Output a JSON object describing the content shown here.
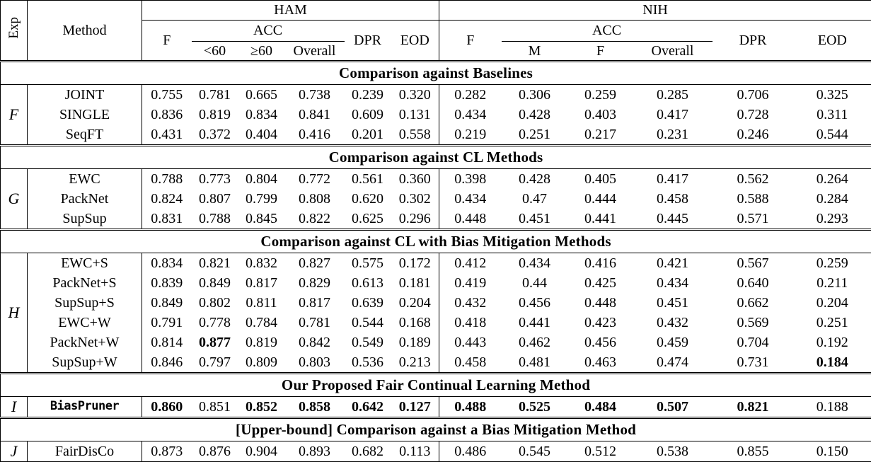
{
  "header": {
    "exp": "Exp",
    "method": "Method",
    "groups": [
      {
        "name": "HAM",
        "f": "F",
        "acc": "ACC",
        "acc_subs": [
          "<60",
          "≥60",
          "Overall"
        ],
        "dpr": "DPR",
        "eod": "EOD"
      },
      {
        "name": "NIH",
        "f": "F",
        "acc": "ACC",
        "acc_subs": [
          "M",
          "F",
          "Overall"
        ],
        "dpr": "DPR",
        "eod": "EOD"
      }
    ]
  },
  "sections": [
    {
      "title": "Comparison against Baselines",
      "exp_symbol": "F",
      "rows": [
        {
          "method": "JOINT",
          "mono": false,
          "values": [
            "0.755",
            "0.781",
            "0.665",
            "0.738",
            "0.239",
            "0.320",
            "0.282",
            "0.306",
            "0.259",
            "0.285",
            "0.706",
            "0.325"
          ],
          "bold": []
        },
        {
          "method": "SINGLE",
          "mono": false,
          "values": [
            "0.836",
            "0.819",
            "0.834",
            "0.841",
            "0.609",
            "0.131",
            "0.434",
            "0.428",
            "0.403",
            "0.417",
            "0.728",
            "0.311"
          ],
          "bold": []
        },
        {
          "method": "SeqFT",
          "mono": false,
          "values": [
            "0.431",
            "0.372",
            "0.404",
            "0.416",
            "0.201",
            "0.558",
            "0.219",
            "0.251",
            "0.217",
            "0.231",
            "0.246",
            "0.544"
          ],
          "bold": []
        }
      ]
    },
    {
      "title": "Comparison against CL Methods",
      "exp_symbol": "G",
      "rows": [
        {
          "method": "EWC",
          "mono": false,
          "values": [
            "0.788",
            "0.773",
            "0.804",
            "0.772",
            "0.561",
            "0.360",
            "0.398",
            "0.428",
            "0.405",
            "0.417",
            "0.562",
            "0.264"
          ],
          "bold": []
        },
        {
          "method": "PackNet",
          "mono": false,
          "values": [
            "0.824",
            "0.807",
            "0.799",
            "0.808",
            "0.620",
            "0.302",
            "0.434",
            "0.47",
            "0.444",
            "0.458",
            "0.588",
            "0.284"
          ],
          "bold": []
        },
        {
          "method": "SupSup",
          "mono": false,
          "values": [
            "0.831",
            "0.788",
            "0.845",
            "0.822",
            "0.625",
            "0.296",
            "0.448",
            "0.451",
            "0.441",
            "0.445",
            "0.571",
            "0.293"
          ],
          "bold": []
        }
      ]
    },
    {
      "title": "Comparison against CL with Bias Mitigation Methods",
      "exp_symbol": "H",
      "rows": [
        {
          "method": "EWC+S",
          "mono": false,
          "values": [
            "0.834",
            "0.821",
            "0.832",
            "0.827",
            "0.575",
            "0.172",
            "0.412",
            "0.434",
            "0.416",
            "0.421",
            "0.567",
            "0.259"
          ],
          "bold": []
        },
        {
          "method": "PackNet+S",
          "mono": false,
          "values": [
            "0.839",
            "0.849",
            "0.817",
            "0.829",
            "0.613",
            "0.181",
            "0.419",
            "0.44",
            "0.425",
            "0.434",
            "0.640",
            "0.211"
          ],
          "bold": []
        },
        {
          "method": "SupSup+S",
          "mono": false,
          "values": [
            "0.849",
            "0.802",
            "0.811",
            "0.817",
            "0.639",
            "0.204",
            "0.432",
            "0.456",
            "0.448",
            "0.451",
            "0.662",
            "0.204"
          ],
          "bold": []
        },
        {
          "method": "EWC+W",
          "mono": false,
          "values": [
            "0.791",
            "0.778",
            "0.784",
            "0.781",
            "0.544",
            "0.168",
            "0.418",
            "0.441",
            "0.423",
            "0.432",
            "0.569",
            "0.251"
          ],
          "bold": []
        },
        {
          "method": "PackNet+W",
          "mono": false,
          "values": [
            "0.814",
            "0.877",
            "0.819",
            "0.842",
            "0.549",
            "0.189",
            "0.443",
            "0.462",
            "0.456",
            "0.459",
            "0.704",
            "0.192"
          ],
          "bold": [
            1
          ]
        },
        {
          "method": "SupSup+W",
          "mono": false,
          "values": [
            "0.846",
            "0.797",
            "0.809",
            "0.803",
            "0.536",
            "0.213",
            "0.458",
            "0.481",
            "0.463",
            "0.474",
            "0.731",
            "0.184"
          ],
          "bold": [
            11
          ]
        }
      ]
    },
    {
      "title": "Our Proposed Fair Continual Learning Method",
      "exp_symbol": "I",
      "rows": [
        {
          "method": "BiasPruner",
          "mono": true,
          "values": [
            "0.860",
            "0.851",
            "0.852",
            "0.858",
            "0.642",
            "0.127",
            "0.488",
            "0.525",
            "0.484",
            "0.507",
            "0.821",
            "0.188"
          ],
          "bold": [
            0,
            2,
            3,
            4,
            5,
            6,
            7,
            8,
            9,
            10
          ]
        }
      ]
    },
    {
      "title": "[Upper-bound] Comparison against a Bias Mitigation Method",
      "exp_symbol": "J",
      "rows": [
        {
          "method": "FairDisCo",
          "mono": false,
          "values": [
            "0.873",
            "0.876",
            "0.904",
            "0.893",
            "0.682",
            "0.113",
            "0.486",
            "0.545",
            "0.512",
            "0.538",
            "0.855",
            "0.150"
          ],
          "bold": []
        }
      ]
    }
  ]
}
